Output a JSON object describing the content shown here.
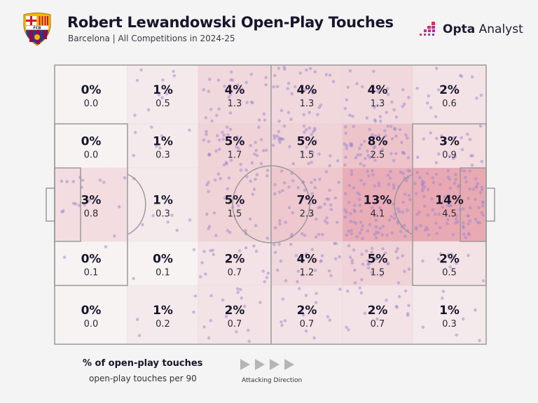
{
  "header": {
    "title": "Robert Lewandowski Open-Play Touches",
    "subtitle": "Barcelona | All Competitions in 2024-25",
    "brand": {
      "bold": "Opta",
      "rest": " Analyst"
    },
    "crest_text": "FCB"
  },
  "colors": {
    "heat_low": "#f7f3f3",
    "heat_high": "#e8a9b3",
    "dot": "#9b85cf",
    "line": "#9a9a9a",
    "brand_pink": "#e0286b",
    "brand_purple": "#8b2fc9"
  },
  "legend": {
    "title": "% of open-play touches",
    "subtitle": "open-play touches per 90",
    "direction_label": "Attacking Direction"
  },
  "chart_data": {
    "type": "heatmap",
    "title": "Robert Lewandowski Open-Play Touches",
    "subtitle": "Barcelona | All Competitions in 2024-25",
    "xlabel": "Attacking Direction (left to right)",
    "ylabel": "",
    "columns": 6,
    "rows": 5,
    "metric_primary": "% of open-play touches",
    "metric_secondary": "open-play touches per 90",
    "zones": [
      [
        {
          "pct": "0%",
          "per90": "0.0"
        },
        {
          "pct": "1%",
          "per90": "0.5"
        },
        {
          "pct": "4%",
          "per90": "1.3"
        },
        {
          "pct": "4%",
          "per90": "1.3"
        },
        {
          "pct": "4%",
          "per90": "1.3"
        },
        {
          "pct": "2%",
          "per90": "0.6"
        }
      ],
      [
        {
          "pct": "0%",
          "per90": "0.0"
        },
        {
          "pct": "1%",
          "per90": "0.3"
        },
        {
          "pct": "5%",
          "per90": "1.7"
        },
        {
          "pct": "5%",
          "per90": "1.5"
        },
        {
          "pct": "8%",
          "per90": "2.5"
        },
        {
          "pct": "3%",
          "per90": "0.9"
        }
      ],
      [
        {
          "pct": "3%",
          "per90": "0.8"
        },
        {
          "pct": "1%",
          "per90": "0.3"
        },
        {
          "pct": "5%",
          "per90": "1.5"
        },
        {
          "pct": "7%",
          "per90": "2.3"
        },
        {
          "pct": "13%",
          "per90": "4.1"
        },
        {
          "pct": "14%",
          "per90": "4.5"
        }
      ],
      [
        {
          "pct": "0%",
          "per90": "0.1"
        },
        {
          "pct": "0%",
          "per90": "0.1"
        },
        {
          "pct": "2%",
          "per90": "0.7"
        },
        {
          "pct": "4%",
          "per90": "1.2"
        },
        {
          "pct": "5%",
          "per90": "1.5"
        },
        {
          "pct": "2%",
          "per90": "0.5"
        }
      ],
      [
        {
          "pct": "0%",
          "per90": "0.0"
        },
        {
          "pct": "1%",
          "per90": "0.2"
        },
        {
          "pct": "2%",
          "per90": "0.7"
        },
        {
          "pct": "2%",
          "per90": "0.7"
        },
        {
          "pct": "2%",
          "per90": "0.7"
        },
        {
          "pct": "1%",
          "per90": "0.3"
        }
      ]
    ],
    "grid": true,
    "legend": "bottom-left"
  }
}
